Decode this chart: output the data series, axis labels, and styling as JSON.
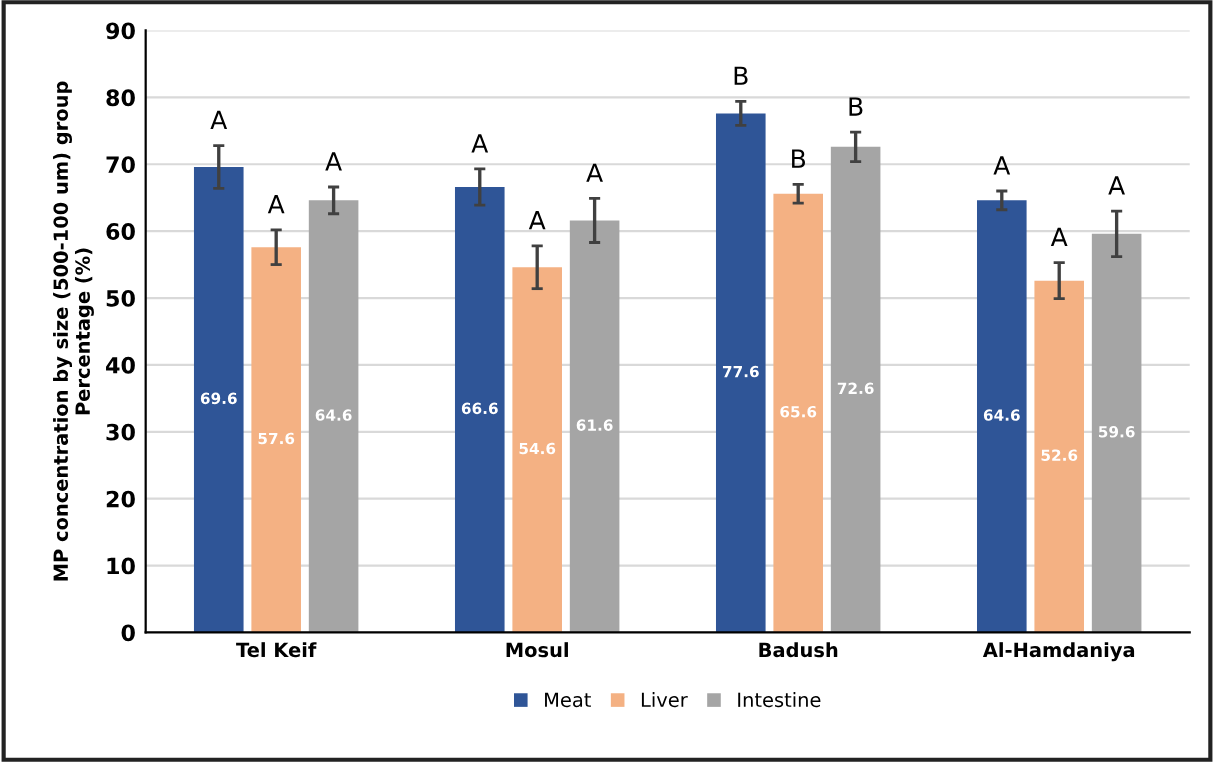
{
  "chart_data": {
    "type": "bar",
    "ylabel": "MP concentration by size (500-100 um) group\nPercentage (%)",
    "categories": [
      "Tel Keif",
      "Mosul",
      "Badush",
      "Al-Hamdaniya"
    ],
    "series": [
      {
        "name": "Meat",
        "color": "#2f5597",
        "values": [
          69.6,
          66.6,
          77.6,
          64.6
        ],
        "errors": [
          3.2,
          2.7,
          1.8,
          1.4
        ]
      },
      {
        "name": "Liver",
        "color": "#f4b183",
        "values": [
          57.6,
          54.6,
          65.6,
          52.6
        ],
        "errors": [
          2.6,
          3.2,
          1.4,
          2.7
        ]
      },
      {
        "name": "Intestine",
        "color": "#a5a5a5",
        "values": [
          64.6,
          61.6,
          72.6,
          59.6
        ],
        "errors": [
          2.0,
          3.3,
          2.2,
          3.4
        ]
      }
    ],
    "annotations": [
      "A",
      "A",
      "A",
      "A",
      "A",
      "A",
      "B",
      "B",
      "B",
      "A",
      "A",
      "A"
    ],
    "ylim": [
      0,
      90
    ],
    "yticks": [
      0,
      10,
      20,
      30,
      40,
      50,
      60,
      70,
      80,
      90
    ],
    "grid": "y",
    "legend": "bottom",
    "data_labels": true
  }
}
